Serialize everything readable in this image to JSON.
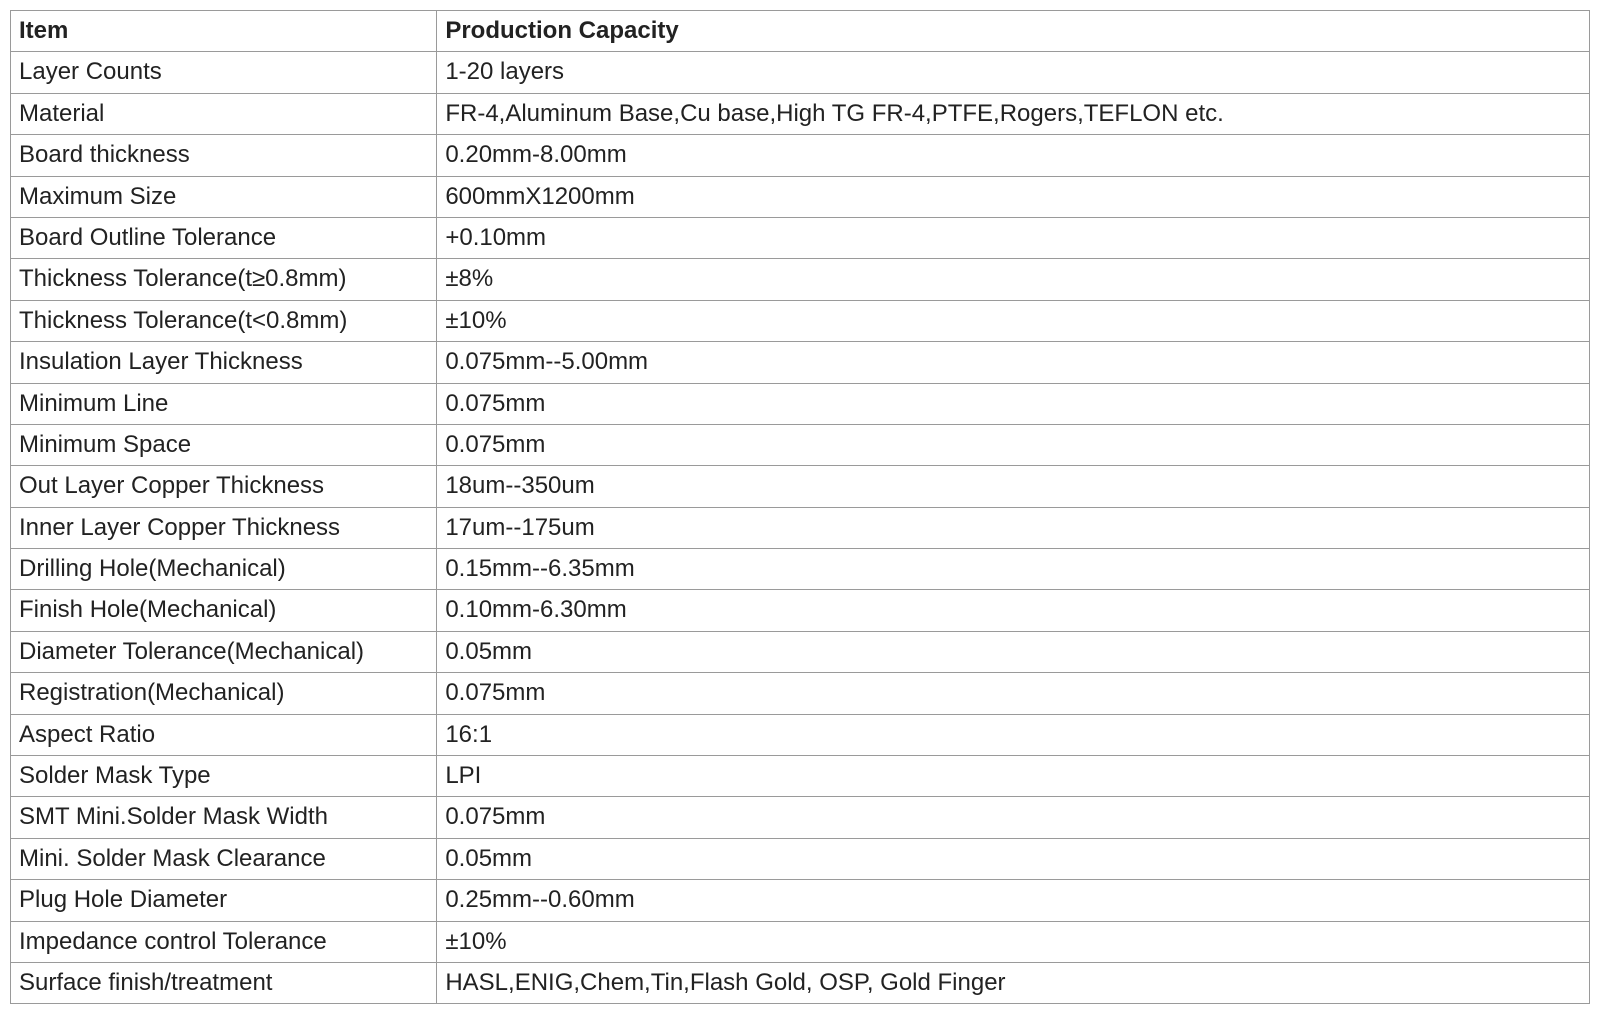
{
  "table": {
    "header": {
      "item": "Item",
      "capacity": "Production Capacity"
    },
    "rows": [
      {
        "item": "Layer Counts",
        "capacity": "1-20 layers"
      },
      {
        "item": "Material",
        "capacity": "FR-4,Aluminum Base,Cu base,High TG FR-4,PTFE,Rogers,TEFLON etc."
      },
      {
        "item": "Board thickness",
        "capacity": "0.20mm-8.00mm"
      },
      {
        "item": "Maximum Size",
        "capacity": "600mmX1200mm"
      },
      {
        "item": "Board Outline Tolerance",
        "capacity": "+0.10mm"
      },
      {
        "item": "Thickness Tolerance(t≥0.8mm)",
        "capacity": "±8%"
      },
      {
        "item": "Thickness Tolerance(t<0.8mm)",
        "capacity": "±10%"
      },
      {
        "item": "Insulation Layer Thickness",
        "capacity": "0.075mm--5.00mm"
      },
      {
        "item": "Minimum Line",
        "capacity": "0.075mm"
      },
      {
        "item": "Minimum Space",
        "capacity": "0.075mm"
      },
      {
        "item": "Out Layer Copper Thickness",
        "capacity": "18um--350um"
      },
      {
        "item": "Inner Layer Copper Thickness",
        "capacity": "17um--175um"
      },
      {
        "item": "Drilling Hole(Mechanical)",
        "capacity": "0.15mm--6.35mm"
      },
      {
        "item": "Finish Hole(Mechanical)",
        "capacity": "0.10mm-6.30mm"
      },
      {
        "item": "Diameter Tolerance(Mechanical)",
        "capacity": "0.05mm"
      },
      {
        "item": "Registration(Mechanical)",
        "capacity": "0.075mm"
      },
      {
        "item": "Aspect Ratio",
        "capacity": "16:1"
      },
      {
        "item": "Solder Mask Type",
        "capacity": "LPI"
      },
      {
        "item": "SMT Mini.Solder Mask Width",
        "capacity": "0.075mm"
      },
      {
        "item": "Mini. Solder Mask Clearance",
        "capacity": "0.05mm"
      },
      {
        "item": "Plug Hole Diameter",
        "capacity": "0.25mm--0.60mm"
      },
      {
        "item": "Impedance control Tolerance",
        "capacity": "±10%"
      },
      {
        "item": "Surface finish/treatment",
        "capacity": "HASL,ENIG,Chem,Tin,Flash Gold, OSP, Gold Finger"
      }
    ],
    "style": {
      "border_color": "#9a9a9a",
      "text_color": "#222222",
      "background_color": "#ffffff",
      "font_size_pt": 18,
      "header_font_weight": "bold",
      "item_col_width_pct": 27,
      "capacity_col_width_pct": 73
    }
  }
}
